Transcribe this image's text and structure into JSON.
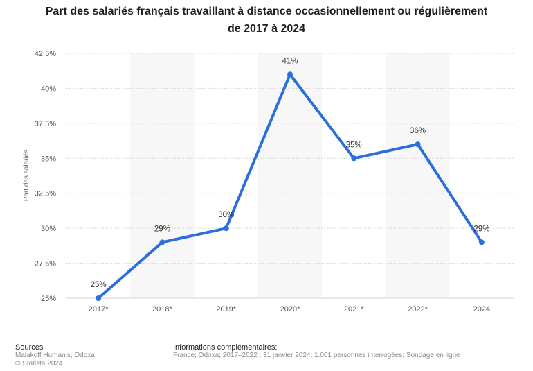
{
  "title_line1": "Part des salariés français travaillant à distance occasionnellement ou régulièrement",
  "title_line2": "de 2017 à 2024",
  "chart_data": {
    "type": "line",
    "title": "Part des salariés français travaillant à distance occasionnellement ou régulièrement de 2017 à 2024",
    "xlabel": "",
    "ylabel": "Part des salariés",
    "categories": [
      "2017*",
      "2018*",
      "2019*",
      "2020*",
      "2021*",
      "2022*",
      "2024"
    ],
    "series": [
      {
        "values": [
          25,
          29,
          30,
          41,
          35,
          36,
          29
        ],
        "labels": [
          "25%",
          "29%",
          "30%",
          "41%",
          "35%",
          "36%",
          "29%"
        ]
      }
    ],
    "yticks": [
      25,
      27.5,
      30,
      32.5,
      35,
      37.5,
      40,
      42.5
    ],
    "ytick_labels": [
      "25%",
      "27,5%",
      "30%",
      "32,5%",
      "35%",
      "37,5%",
      "40%",
      "42,5%"
    ],
    "ylim": [
      25,
      42.5
    ],
    "grid": true,
    "line_color": "#2a6fdb"
  },
  "footer": {
    "sources_heading": "Sources",
    "sources_line1": "Malakoff Humanis; Odoxa",
    "sources_line2": "© Statista 2024",
    "info_heading": "Informations complémentaires:",
    "info_text": "France; Odoxa; 2017–2022 ; 31 janvier 2024; 1.001 personnes interrogées; Sondage en ligne"
  }
}
